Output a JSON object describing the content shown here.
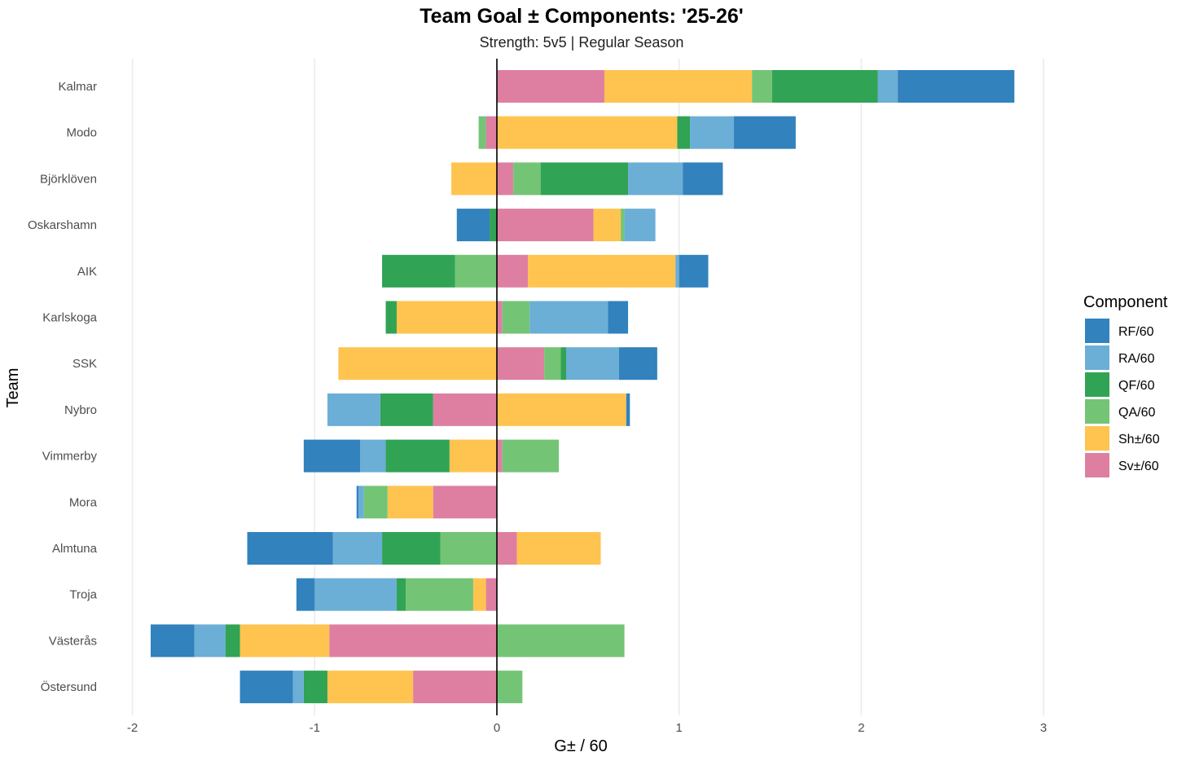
{
  "chart_data": {
    "type": "bar",
    "orientation": "horizontal",
    "stacked": "diverging",
    "title": "Team Goal ± Components: '25-26'",
    "subtitle": "Strength: 5v5 | Regular Season",
    "xlabel": "G± / 60",
    "ylabel": "Team",
    "xlim": [
      -2.2,
      3.15
    ],
    "xticks": [
      -2,
      -1,
      0,
      1,
      2,
      3
    ],
    "xtick_labels": [
      "-2",
      "-1",
      "0",
      "1",
      "2",
      "3"
    ],
    "categories": [
      "Kalmar",
      "Modo",
      "Björklöven",
      "Oskarshamn",
      "AIK",
      "Karlskoga",
      "SSK",
      "Nybro",
      "Vimmerby",
      "Mora",
      "Almtuna",
      "Troja",
      "Västerås",
      "Östersund"
    ],
    "legend": {
      "title": "Component",
      "position": "right",
      "order": [
        "RF/60",
        "RA/60",
        "QF/60",
        "QA/60",
        "Sh±/60",
        "Sv±/60"
      ]
    },
    "stack_order": [
      "Sv±/60",
      "Sh±/60",
      "QA/60",
      "QF/60",
      "RA/60",
      "RF/60"
    ],
    "series": [
      {
        "name": "RF/60",
        "color": "#3182bd",
        "values": [
          0.64,
          0.34,
          0.22,
          -0.18,
          0.16,
          0.11,
          0.21,
          0.02,
          -0.31,
          -0.01,
          -0.47,
          -0.1,
          -0.24,
          -0.29
        ]
      },
      {
        "name": "RA/60",
        "color": "#6baed6",
        "values": [
          0.11,
          0.24,
          0.3,
          0.17,
          0.02,
          0.43,
          0.29,
          -0.29,
          -0.14,
          -0.03,
          -0.27,
          -0.45,
          -0.17,
          -0.06
        ]
      },
      {
        "name": "QF/60",
        "color": "#31a354",
        "values": [
          0.58,
          0.07,
          0.48,
          -0.04,
          -0.4,
          -0.06,
          0.03,
          -0.29,
          -0.35,
          0.0,
          -0.32,
          -0.05,
          -0.08,
          -0.13
        ]
      },
      {
        "name": "QA/60",
        "color": "#74c476",
        "values": [
          0.11,
          -0.04,
          0.15,
          0.02,
          -0.23,
          0.15,
          0.09,
          0.0,
          0.31,
          -0.13,
          -0.31,
          -0.37,
          0.7,
          0.14
        ]
      },
      {
        "name": "Sh±/60",
        "color": "#fec44f",
        "values": [
          0.81,
          0.99,
          -0.25,
          0.15,
          0.81,
          -0.55,
          -0.87,
          0.71,
          -0.26,
          -0.25,
          0.46,
          -0.07,
          -0.49,
          -0.47
        ]
      },
      {
        "name": "Sv±/60",
        "color": "#de7fa2",
        "values": [
          0.59,
          -0.06,
          0.09,
          0.53,
          0.17,
          0.03,
          0.26,
          -0.35,
          0.03,
          -0.35,
          0.11,
          -0.06,
          -0.92,
          -0.46
        ]
      }
    ]
  }
}
